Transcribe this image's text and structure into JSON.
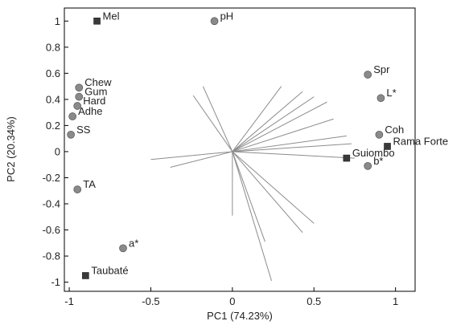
{
  "chart_data": {
    "type": "scatter",
    "xlabel": "PC1 (74.23%)",
    "ylabel": "PC2 (20.34%)",
    "xlim": [
      -1.03,
      1.12
    ],
    "ylim": [
      -1.07,
      1.1
    ],
    "xticks": [
      -1,
      -0.5,
      0,
      0.5,
      1
    ],
    "xtick_labels": [
      "-1",
      "-0.5",
      "0",
      "0.5",
      "1"
    ],
    "yticks": [
      1,
      0.8,
      0.6,
      0.4,
      0.2,
      0,
      -0.2,
      -0.4,
      -0.6,
      -0.8,
      -1
    ],
    "ytick_labels": [
      "1",
      "0.8",
      "0.6",
      "0.4",
      "0.2",
      "0",
      "-0.2",
      "-0.4",
      "-0.6",
      "-0.8",
      "-1"
    ],
    "grid": false,
    "colors": {
      "marker": "#8a8a8a",
      "marker_square": "#3a3a3a",
      "vector": "#8c8c8c",
      "axis": "#000000"
    },
    "points": [
      {
        "label": "pH",
        "x": -0.11,
        "y": 1.0,
        "marker": "circle"
      },
      {
        "label": "Chew",
        "x": -0.94,
        "y": 0.49,
        "marker": "circle"
      },
      {
        "label": "Gum",
        "x": -0.94,
        "y": 0.42,
        "marker": "circle"
      },
      {
        "label": "Hard",
        "x": -0.95,
        "y": 0.35,
        "marker": "circle"
      },
      {
        "label": "Adhe",
        "x": -0.98,
        "y": 0.27,
        "marker": "circle"
      },
      {
        "label": "SS",
        "x": -0.99,
        "y": 0.13,
        "marker": "circle"
      },
      {
        "label": "TA",
        "x": -0.95,
        "y": -0.29,
        "marker": "circle"
      },
      {
        "label": "a*",
        "x": -0.67,
        "y": -0.74,
        "marker": "circle"
      },
      {
        "label": "Spr",
        "x": 0.83,
        "y": 0.59,
        "marker": "circle"
      },
      {
        "label": "L*",
        "x": 0.91,
        "y": 0.41,
        "marker": "circle"
      },
      {
        "label": "Coh",
        "x": 0.9,
        "y": 0.13,
        "marker": "circle"
      },
      {
        "label": "b*",
        "x": 0.83,
        "y": -0.11,
        "marker": "circle"
      },
      {
        "label": "Mel",
        "x": -0.83,
        "y": 1.0,
        "marker": "square"
      },
      {
        "label": "Taubaté",
        "x": -0.9,
        "y": -0.95,
        "marker": "square"
      },
      {
        "label": "Rama Forte",
        "x": 0.95,
        "y": 0.04,
        "marker": "square"
      },
      {
        "label": "Guiombo",
        "x": 0.7,
        "y": -0.05,
        "marker": "square"
      }
    ],
    "vectors": [
      {
        "x": -0.24,
        "y": 0.43
      },
      {
        "x": -0.18,
        "y": 0.5
      },
      {
        "x": 0.3,
        "y": 0.5
      },
      {
        "x": 0.43,
        "y": 0.46
      },
      {
        "x": 0.5,
        "y": 0.42
      },
      {
        "x": 0.58,
        "y": 0.38
      },
      {
        "x": 0.62,
        "y": 0.25
      },
      {
        "x": 0.7,
        "y": 0.12
      },
      {
        "x": 0.73,
        "y": 0.06
      },
      {
        "x": 0.75,
        "y": -0.05
      },
      {
        "x": -0.5,
        "y": -0.06
      },
      {
        "x": -0.38,
        "y": -0.12
      },
      {
        "x": 0.0,
        "y": -0.49
      },
      {
        "x": 0.2,
        "y": -0.69
      },
      {
        "x": 0.24,
        "y": -0.99
      },
      {
        "x": 0.5,
        "y": -0.55
      },
      {
        "x": 0.43,
        "y": -0.62
      }
    ]
  }
}
